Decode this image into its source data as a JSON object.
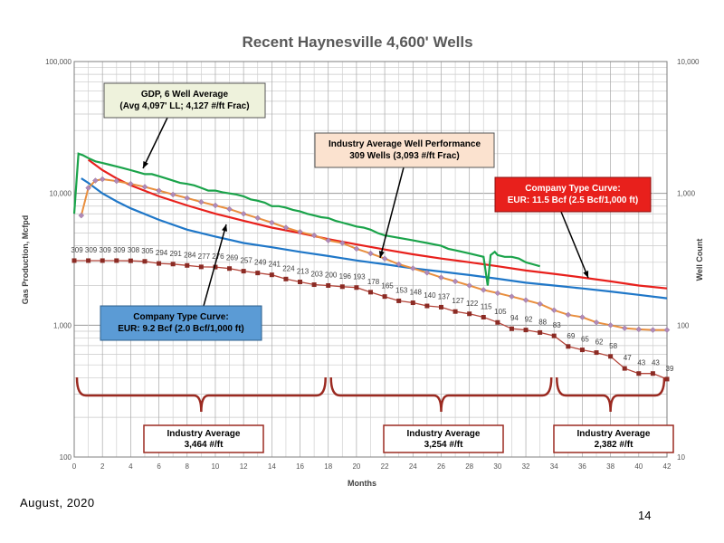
{
  "page": {
    "date": "August, 2020",
    "page_number": "14"
  },
  "chart_data": {
    "type": "line",
    "title": "Recent Haynesville 4,600' Wells",
    "xlabel": "Months",
    "ylabel_left": "Gas Production, Mcfpd",
    "ylabel_right": "Well Count",
    "x_range": [
      0,
      42
    ],
    "x_ticks": [
      "0",
      "2",
      "4",
      "6",
      "8",
      "10",
      "12",
      "14",
      "16",
      "18",
      "20",
      "22",
      "24",
      "26",
      "28",
      "30",
      "32",
      "34",
      "36",
      "38",
      "40",
      "42"
    ],
    "y_left_range": [
      100,
      100000
    ],
    "y_left_scale": "log",
    "y_left_ticks": [
      "100",
      "1,000",
      "10,000",
      "100,000"
    ],
    "y_right_range": [
      10,
      10000
    ],
    "y_right_scale": "log",
    "y_right_ticks": [
      "10",
      "100",
      "1,000",
      "10,000"
    ],
    "grid": true,
    "colors": {
      "gdp": "#1aa34a",
      "industry_line": "#e98f3f",
      "industry_marker": "#b08ab8",
      "type_115": "#e8201c",
      "type_92": "#1f77c8",
      "well_count_line": "#b4453a",
      "well_count_marker": "#8b2b24",
      "brace": "#9b2a21"
    },
    "series": [
      {
        "key": "gdp",
        "name": "GDP, 6 Well Average",
        "x": [
          0,
          0.3,
          0.6,
          1,
          1.5,
          2,
          2.5,
          3,
          3.5,
          4,
          4.5,
          5,
          5.5,
          6,
          6.5,
          7,
          7.5,
          8,
          8.5,
          9,
          9.5,
          10,
          10.5,
          11,
          11.5,
          12,
          12.5,
          13,
          13.5,
          14,
          14.5,
          15,
          15.5,
          16,
          16.5,
          17,
          17.5,
          18,
          18.5,
          19,
          19.5,
          20,
          20.5,
          21,
          21.5,
          22,
          22.5,
          23,
          23.5,
          24,
          24.5,
          25,
          25.5,
          26,
          26.5,
          27,
          27.5,
          28,
          28.5,
          29,
          29.3,
          29.5,
          29.8,
          30,
          30.5,
          31,
          31.5,
          32,
          32.5,
          33
        ],
        "y": [
          7000,
          20000,
          19500,
          18500,
          17500,
          17000,
          16500,
          16000,
          15500,
          15000,
          14500,
          14000,
          14000,
          13500,
          13000,
          12500,
          12000,
          11800,
          11500,
          11000,
          10500,
          10500,
          10200,
          10000,
          9800,
          9500,
          9000,
          8800,
          8500,
          8000,
          8000,
          7800,
          7500,
          7300,
          7000,
          6800,
          6600,
          6500,
          6200,
          6000,
          5800,
          5600,
          5500,
          5300,
          5000,
          4800,
          4700,
          4600,
          4500,
          4400,
          4300,
          4200,
          4100,
          4000,
          3800,
          3700,
          3600,
          3500,
          3400,
          3300,
          2000,
          3400,
          3600,
          3400,
          3300,
          3300,
          3200,
          3000,
          2900,
          2800
        ]
      },
      {
        "key": "industry",
        "name": "Industry Average Well Performance",
        "x": [
          0.5,
          1,
          1.5,
          2,
          3,
          4,
          5,
          6,
          7,
          8,
          9,
          10,
          11,
          12,
          13,
          14,
          15,
          16,
          17,
          18,
          19,
          20,
          21,
          22,
          23,
          24,
          25,
          26,
          27,
          28,
          29,
          30,
          31,
          32,
          33,
          34,
          35,
          36,
          37,
          38,
          39,
          40,
          41,
          42
        ],
        "y": [
          6800,
          11000,
          12500,
          12800,
          12400,
          11800,
          11200,
          10500,
          9800,
          9200,
          8600,
          8100,
          7600,
          7000,
          6500,
          6000,
          5500,
          5100,
          4800,
          4400,
          4200,
          3800,
          3500,
          3200,
          2900,
          2700,
          2500,
          2300,
          2150,
          2000,
          1850,
          1750,
          1650,
          1550,
          1450,
          1300,
          1200,
          1150,
          1050,
          1000,
          950,
          930,
          920,
          920
        ]
      },
      {
        "key": "type_115",
        "name": "Company Type Curve: EUR: 11.5 Bcf (2.5 Bcf/1,000 ft)",
        "x": [
          1,
          2,
          3,
          4,
          6,
          8,
          10,
          12,
          14,
          16,
          18,
          20,
          22,
          24,
          26,
          28,
          30,
          32,
          34,
          36,
          38,
          40,
          42
        ],
        "y": [
          18000,
          15000,
          13000,
          11500,
          9500,
          8100,
          7000,
          6200,
          5500,
          5000,
          4500,
          4100,
          3750,
          3450,
          3200,
          3000,
          2800,
          2600,
          2450,
          2300,
          2150,
          2000,
          1900
        ]
      },
      {
        "key": "type_92",
        "name": "Company Type Curve: EUR: 9.2 Bcf (2.0 Bcf/1,000 ft)",
        "x": [
          0.5,
          1,
          2,
          3,
          4,
          6,
          8,
          10,
          12,
          14,
          16,
          18,
          20,
          22,
          24,
          26,
          28,
          30,
          32,
          34,
          36,
          38,
          40,
          42
        ],
        "y": [
          13000,
          12000,
          10000,
          8700,
          7700,
          6300,
          5300,
          4700,
          4200,
          3900,
          3600,
          3350,
          3100,
          2900,
          2700,
          2550,
          2400,
          2250,
          2100,
          2000,
          1900,
          1800,
          1700,
          1600
        ]
      },
      {
        "key": "well_count",
        "name": "Well Count",
        "axis": "right",
        "x": [
          0,
          1,
          2,
          3,
          4,
          5,
          6,
          7,
          8,
          9,
          10,
          11,
          12,
          13,
          14,
          15,
          16,
          17,
          18,
          19,
          20,
          21,
          22,
          23,
          24,
          25,
          26,
          27,
          28,
          29,
          30,
          31,
          32,
          33,
          34,
          35,
          36,
          37,
          38,
          39,
          40,
          41,
          42
        ],
        "y": [
          309,
          309,
          309,
          309,
          308,
          305,
          294,
          291,
          284,
          277,
          276,
          269,
          257,
          249,
          241,
          224,
          213,
          203,
          200,
          196,
          193,
          178,
          165,
          153,
          148,
          140,
          137,
          127,
          122,
          115,
          105,
          94,
          92,
          88,
          83,
          69,
          65,
          62,
          58,
          47,
          43,
          43,
          39
        ]
      }
    ],
    "well_count_labels": [
      "309",
      "309",
      "309",
      "309",
      "308",
      "305",
      "294",
      "291",
      "284",
      "277",
      "276",
      "269",
      "257",
      "249",
      "241",
      "224",
      "213",
      "203",
      "200",
      "196",
      "193",
      "178",
      "165",
      "153",
      "148",
      "140",
      "137",
      "127",
      "122",
      "115",
      "105",
      "94",
      "92",
      "88",
      "83",
      "69",
      "65",
      "62",
      "58",
      "47",
      "43",
      "43",
      "39"
    ],
    "annotations": {
      "gdp": [
        "GDP, 6 Well Average",
        "(Avg 4,097' LL; 4,127 #/ft Frac)"
      ],
      "industry": [
        "Industry Average Well Performance",
        "309 Wells (3,093 #/ft Frac)"
      ],
      "type_115": [
        "Company Type Curve:",
        "EUR: 11.5 Bcf (2.5 Bcf/1,000 ft)"
      ],
      "type_92": [
        "Company Type Curve:",
        "EUR: 9.2 Bcf (2.0 Bcf/1,000 ft)"
      ]
    },
    "frac_groups": [
      {
        "x_start": 0,
        "x_end": 18,
        "lines": [
          "Industry Average",
          "3,464 #/ft"
        ]
      },
      {
        "x_start": 18,
        "x_end": 34,
        "lines": [
          "Industry Average",
          "3,254 #/ft"
        ]
      },
      {
        "x_start": 34,
        "x_end": 42,
        "lines": [
          "Industry Average",
          "2,382 #/ft"
        ]
      }
    ]
  }
}
